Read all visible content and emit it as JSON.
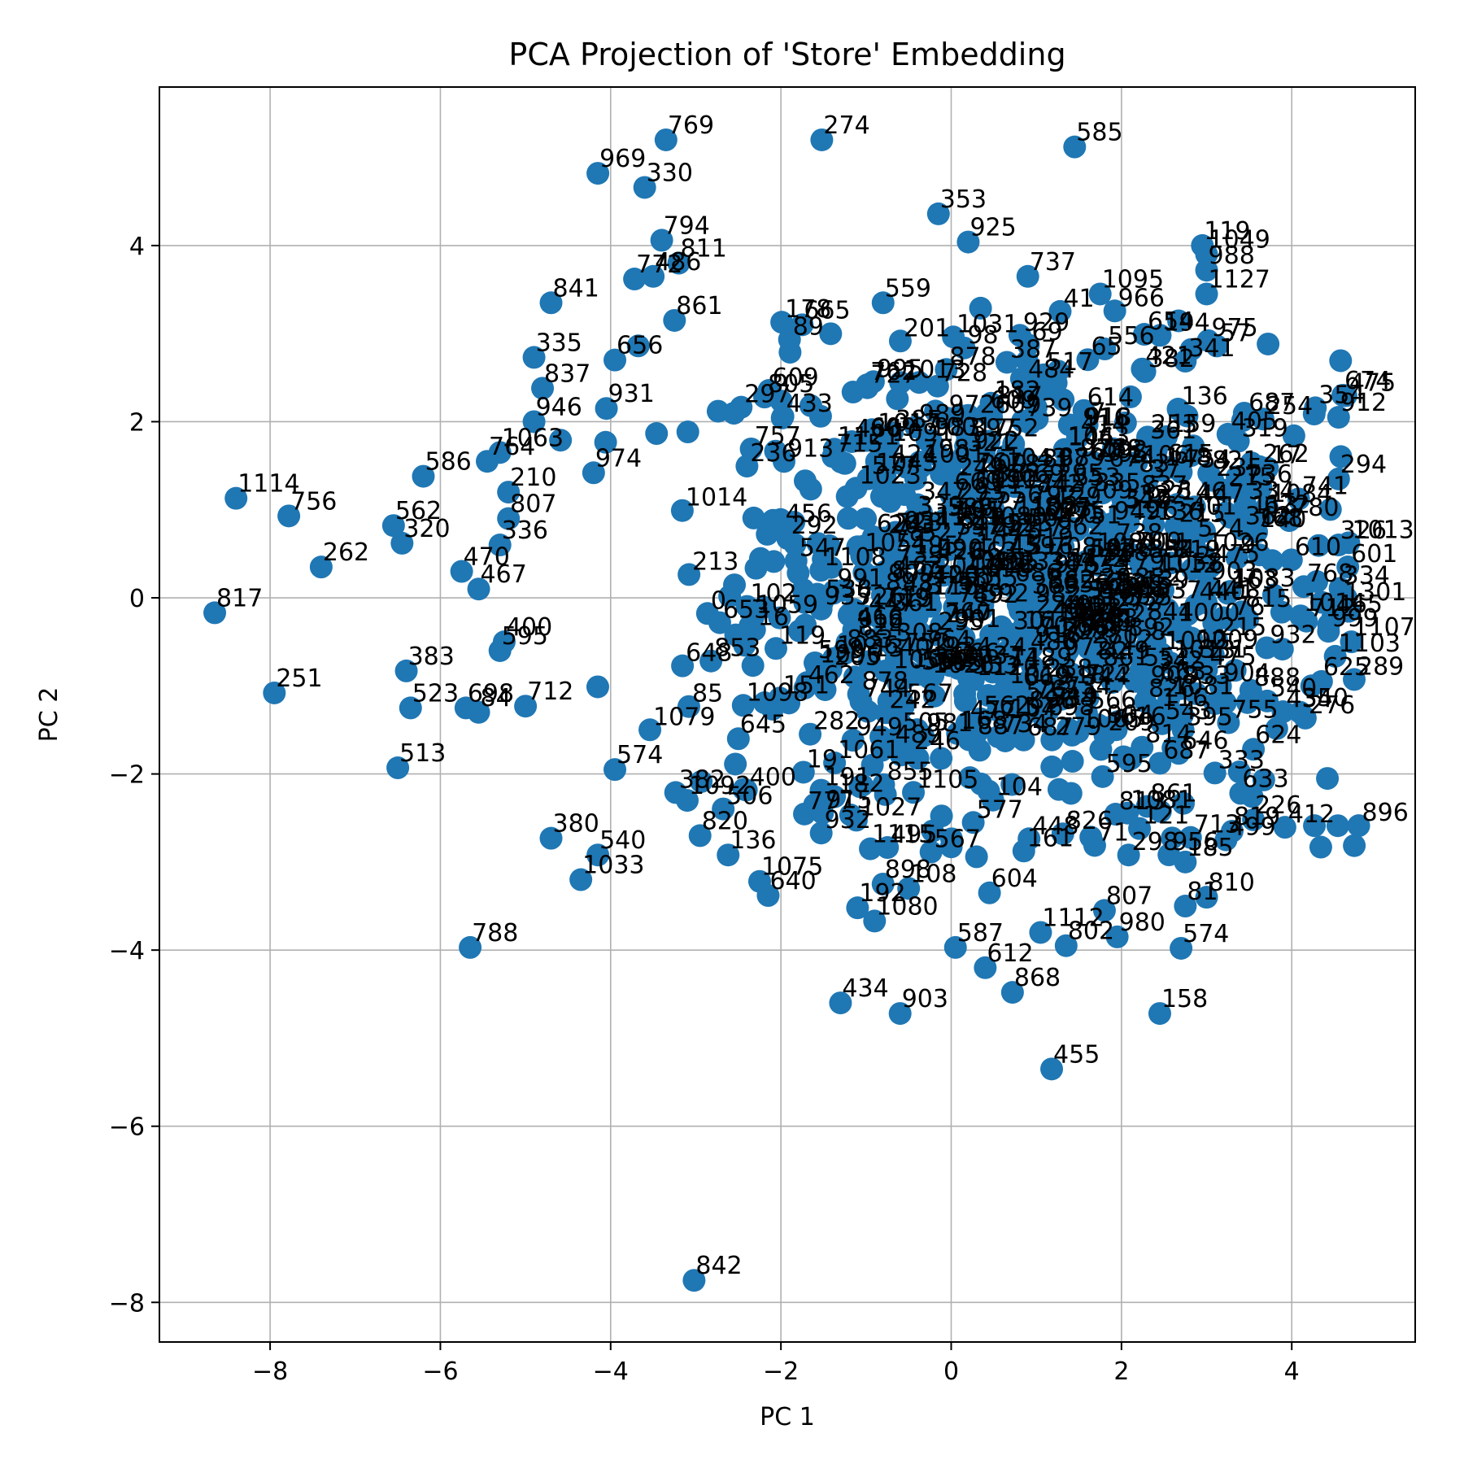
{
  "chart_data": {
    "type": "scatter",
    "title": "PCA Projection of 'Store' Embedding",
    "xlabel": "PC 1",
    "ylabel": "PC 2",
    "xlim": [
      -9.3,
      5.45
    ],
    "ylim": [
      -8.45,
      5.8
    ],
    "xticks": [
      -8,
      -6,
      -4,
      -2,
      0,
      2,
      4
    ],
    "yticks": [
      -8,
      -6,
      -4,
      -2,
      0,
      2,
      4
    ],
    "grid": true,
    "marker_color": "#1f77b4",
    "labeled_points": [
      {
        "label": "769",
        "x": -3.35,
        "y": 5.2
      },
      {
        "label": "274",
        "x": -1.52,
        "y": 5.2
      },
      {
        "label": "585",
        "x": 1.45,
        "y": 5.12
      },
      {
        "label": "969",
        "x": -4.15,
        "y": 4.82
      },
      {
        "label": "330",
        "x": -3.6,
        "y": 4.66
      },
      {
        "label": "353",
        "x": -0.15,
        "y": 4.36
      },
      {
        "label": "925",
        "x": 0.2,
        "y": 4.04
      },
      {
        "label": "794",
        "x": -3.4,
        "y": 4.06
      },
      {
        "label": "811",
        "x": -3.2,
        "y": 3.8
      },
      {
        "label": "486",
        "x": -3.5,
        "y": 3.65
      },
      {
        "label": "772",
        "x": -3.72,
        "y": 3.62
      },
      {
        "label": "841",
        "x": -4.7,
        "y": 3.35
      },
      {
        "label": "119",
        "x": 2.95,
        "y": 4.0
      },
      {
        "label": "1049",
        "x": 3.0,
        "y": 3.9
      },
      {
        "label": "988",
        "x": 3.0,
        "y": 3.72
      },
      {
        "label": "1127",
        "x": 3.0,
        "y": 3.45
      },
      {
        "label": "559",
        "x": -0.8,
        "y": 3.35
      },
      {
        "label": "737",
        "x": 0.9,
        "y": 3.65
      },
      {
        "label": "1095",
        "x": 1.75,
        "y": 3.45
      },
      {
        "label": "665",
        "x": -1.75,
        "y": 3.1
      },
      {
        "label": "861",
        "x": -3.25,
        "y": 3.15
      },
      {
        "label": "335",
        "x": -4.9,
        "y": 2.73
      },
      {
        "label": "656",
        "x": -3.95,
        "y": 2.7
      },
      {
        "label": "837",
        "x": -4.8,
        "y": 2.38
      },
      {
        "label": "931",
        "x": -4.05,
        "y": 2.15
      },
      {
        "label": "946",
        "x": -4.9,
        "y": 2.0
      },
      {
        "label": "1063",
        "x": -5.3,
        "y": 1.65
      },
      {
        "label": "764",
        "x": -5.45,
        "y": 1.55
      },
      {
        "label": "586",
        "x": -6.2,
        "y": 1.38
      },
      {
        "label": "974",
        "x": -4.2,
        "y": 1.42
      },
      {
        "label": "210",
        "x": -5.2,
        "y": 1.2
      },
      {
        "label": "1114",
        "x": -8.4,
        "y": 1.13
      },
      {
        "label": "756",
        "x": -7.78,
        "y": 0.93
      },
      {
        "label": "562",
        "x": -6.55,
        "y": 0.82
      },
      {
        "label": "320",
        "x": -6.45,
        "y": 0.62
      },
      {
        "label": "262",
        "x": -7.4,
        "y": 0.35
      },
      {
        "label": "336",
        "x": -5.3,
        "y": 0.6
      },
      {
        "label": "807",
        "x": -5.2,
        "y": 0.9
      },
      {
        "label": "470",
        "x": -5.75,
        "y": 0.3
      },
      {
        "label": "467",
        "x": -5.55,
        "y": 0.1
      },
      {
        "label": "817",
        "x": -8.65,
        "y": -0.17
      },
      {
        "label": "400",
        "x": -5.25,
        "y": -0.5
      },
      {
        "label": "595",
        "x": -5.3,
        "y": -0.6
      },
      {
        "label": "383",
        "x": -6.4,
        "y": -0.83
      },
      {
        "label": "251",
        "x": -7.95,
        "y": -1.08
      },
      {
        "label": "523",
        "x": -6.35,
        "y": -1.25
      },
      {
        "label": "698",
        "x": -5.7,
        "y": -1.25
      },
      {
        "label": "84",
        "x": -5.55,
        "y": -1.3
      },
      {
        "label": "712",
        "x": -5.0,
        "y": -1.23
      },
      {
        "label": "513",
        "x": -6.5,
        "y": -1.93
      },
      {
        "label": "574",
        "x": -3.95,
        "y": -1.95
      },
      {
        "label": "645",
        "x": -2.5,
        "y": -1.6
      },
      {
        "label": "380",
        "x": -4.7,
        "y": -2.73
      },
      {
        "label": "540",
        "x": -4.15,
        "y": -2.92
      },
      {
        "label": "1033",
        "x": -4.35,
        "y": -3.2
      },
      {
        "label": "820",
        "x": -2.95,
        "y": -2.7
      },
      {
        "label": "1092",
        "x": -3.1,
        "y": -2.3
      },
      {
        "label": "136",
        "x": -2.62,
        "y": -2.92
      },
      {
        "label": "1075",
        "x": -2.25,
        "y": -3.22
      },
      {
        "label": "640",
        "x": -2.15,
        "y": -3.38
      },
      {
        "label": "788",
        "x": -5.65,
        "y": -3.97
      },
      {
        "label": "842",
        "x": -3.02,
        "y": -7.75
      },
      {
        "label": "1115",
        "x": -0.95,
        "y": -2.85
      },
      {
        "label": "898",
        "x": -0.8,
        "y": -3.25
      },
      {
        "label": "108",
        "x": -0.5,
        "y": -3.3
      },
      {
        "label": "1080",
        "x": -0.9,
        "y": -3.67
      },
      {
        "label": "192",
        "x": -1.1,
        "y": -3.52
      },
      {
        "label": "434",
        "x": -1.3,
        "y": -4.6
      },
      {
        "label": "903",
        "x": -0.6,
        "y": -4.72
      },
      {
        "label": "587",
        "x": 0.05,
        "y": -3.97
      },
      {
        "label": "612",
        "x": 0.4,
        "y": -4.2
      },
      {
        "label": "868",
        "x": 0.72,
        "y": -4.48
      },
      {
        "label": "604",
        "x": 0.45,
        "y": -3.35
      },
      {
        "label": "1112",
        "x": 1.05,
        "y": -3.8
      },
      {
        "label": "802",
        "x": 1.35,
        "y": -3.95
      },
      {
        "label": "980",
        "x": 1.95,
        "y": -3.85
      },
      {
        "label": "807",
        "x": 1.8,
        "y": -3.55
      },
      {
        "label": "574",
        "x": 2.7,
        "y": -3.98
      },
      {
        "label": "158",
        "x": 2.45,
        "y": -4.72
      },
      {
        "label": "455",
        "x": 1.18,
        "y": -5.35
      },
      {
        "label": "810",
        "x": 3.0,
        "y": -3.4
      },
      {
        "label": "81",
        "x": 2.75,
        "y": -3.5
      },
      {
        "label": "185",
        "x": 2.75,
        "y": -3.0
      },
      {
        "label": "819",
        "x": 3.3,
        "y": -2.65
      },
      {
        "label": "226",
        "x": 3.55,
        "y": -2.52
      },
      {
        "label": "633",
        "x": 3.4,
        "y": -2.22
      },
      {
        "label": "624",
        "x": 3.55,
        "y": -1.72
      },
      {
        "label": "350",
        "x": 4.1,
        "y": -1.3
      },
      {
        "label": "625",
        "x": 4.35,
        "y": -0.95
      },
      {
        "label": "1107",
        "x": 4.7,
        "y": -0.5
      },
      {
        "label": "1301",
        "x": 4.6,
        "y": -0.1
      },
      {
        "label": "326",
        "x": 4.55,
        "y": 0.6
      },
      {
        "label": "294",
        "x": 4.55,
        "y": 1.35
      },
      {
        "label": "912",
        "x": 4.55,
        "y": 2.05
      },
      {
        "label": "674",
        "x": 4.6,
        "y": 2.3
      }
    ],
    "cluster_center": [
      0.8,
      0.1
    ]
  }
}
